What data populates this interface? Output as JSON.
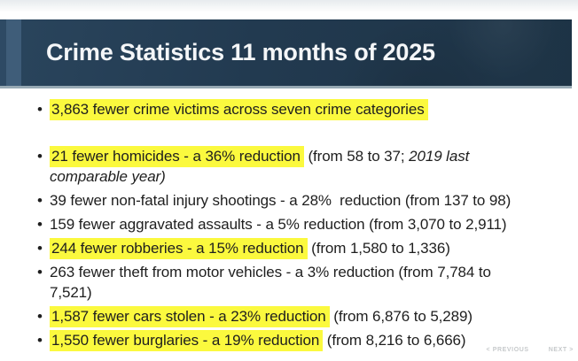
{
  "slide": {
    "title": "Crime Statistics 11 months of 2025"
  },
  "bullets": [
    {
      "spacer_after": true,
      "segments": [
        {
          "t": "3,863 fewer crime victims across seven crime categories",
          "hl": true
        }
      ]
    },
    {
      "segments": [
        {
          "t": "21 fewer homicides - a 36% reduction",
          "hl": true
        },
        {
          "t": " (from 58 to 37; "
        },
        {
          "t": "2019 last",
          "it": true,
          "br": true
        },
        {
          "t": "comparable year)",
          "it": true
        }
      ]
    },
    {
      "segments": [
        {
          "t": "39 fewer non-fatal injury shootings - a 28%  reduction (from 137 to 98)"
        }
      ]
    },
    {
      "segments": [
        {
          "t": "159 fewer aggravated assaults - a 5% reduction (from 3,070 to 2,911)"
        }
      ]
    },
    {
      "segments": [
        {
          "t": "244 fewer robberies - a 15% reduction",
          "hl": true
        },
        {
          "t": " (from 1,580 to 1,336)"
        }
      ]
    },
    {
      "segments": [
        {
          "t": "263 fewer theft from motor vehicles - a 3% reduction (from 7,784 to",
          "br": true
        },
        {
          "t": "7,521)"
        }
      ]
    },
    {
      "segments": [
        {
          "t": "1,587 fewer cars stolen - a 23% reduction",
          "hl": true
        },
        {
          "t": " (from 6,876 to 5,289)"
        }
      ]
    },
    {
      "segments": [
        {
          "t": "1,550 fewer burglaries - a 19% reduction",
          "hl": true
        },
        {
          "t": " (from 8,216 to 6,666)"
        }
      ]
    }
  ],
  "footer": {
    "previous_label": "< PREVIOUS",
    "next_label": "NEXT >"
  },
  "icons": {
    "bullet": "•"
  },
  "colors": {
    "header_navy": "#223a50",
    "header_navy_dark": "#1d3345",
    "accent_bar_dark": "#2e4a64",
    "accent_bar_light": "#3f5d79",
    "header_edge": "#97a9b4",
    "top_strip_gray": "#e7ebee",
    "highlight_yellow": "#fbf93e",
    "text_dark": "#1e1e1e",
    "title_white": "#f4f6f8",
    "nav_gray": "#c6c9cb"
  }
}
